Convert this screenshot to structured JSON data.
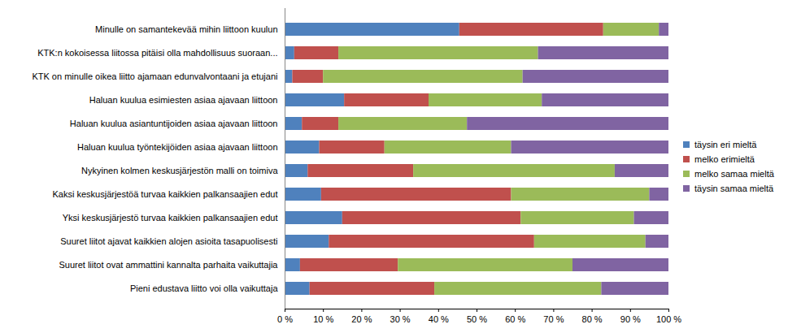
{
  "chart_data": {
    "type": "bar",
    "orientation": "horizontal",
    "stacked": true,
    "grid": false,
    "legend": "right",
    "data_labels": false,
    "categories": [
      "Minulle on samantekevää mihin liittoon kuulun",
      "KTK:n kokoisessa liitossa pitäisi olla mahdollisuus suoraan...",
      "KTK on minulle oikea liitto ajamaan edunvalvontaani ja etujani",
      "Haluan kuulua esimiesten asiaa ajavaan liittoon",
      "Haluan kuulua asiantuntijoiden asiaa ajavaan liittoon",
      "Haluan kuulua työntekijöiden asiaa ajavaan liittoon",
      "Nykyinen kolmen keskusjärjestön malli on toimiva",
      "Kaksi keskusjärjestöä turvaa kaikkien palkansaajien edut",
      "Yksi keskusjärjestö turvaa kaikkien palkansaajien edut",
      "Suuret liitot ajavat kaikkien alojen asioita tasapuolisesti",
      "Suuret liitot ovat ammattini kannalta parhaita vaikuttajia",
      "Pieni edustava liitto voi olla vaikuttaja"
    ],
    "series": [
      {
        "name": "täysin eri mieltä",
        "color": "#4F81BD",
        "values": [
          45.5,
          2.5,
          2,
          15.5,
          4.5,
          9,
          6,
          9.5,
          15,
          11.5,
          4,
          6.5
        ]
      },
      {
        "name": "melko erimieltä",
        "color": "#C0504D",
        "values": [
          37.5,
          11.5,
          8,
          22,
          9.5,
          17,
          27.5,
          49.5,
          46.5,
          53.5,
          25.5,
          32.5
        ]
      },
      {
        "name": "melko samaa mieltä",
        "color": "#9BBB59",
        "values": [
          14.5,
          52,
          52,
          29.5,
          33.5,
          33,
          52.5,
          36,
          29.5,
          29,
          45.5,
          43.5
        ]
      },
      {
        "name": "täysin samaa mieltä",
        "color": "#8064A2",
        "values": [
          2.5,
          34,
          38,
          33,
          52.5,
          41,
          14,
          5,
          9,
          6,
          25,
          17.5
        ]
      }
    ],
    "xlim": [
      0,
      100
    ],
    "xticks": [
      {
        "value": 0,
        "label": "0 %"
      },
      {
        "value": 10,
        "label": "10 %"
      },
      {
        "value": 20,
        "label": "20 %"
      },
      {
        "value": 30,
        "label": "30 %"
      },
      {
        "value": 40,
        "label": "40 %"
      },
      {
        "value": 50,
        "label": "50 %"
      },
      {
        "value": 60,
        "label": "60 %"
      },
      {
        "value": 70,
        "label": "70 %"
      },
      {
        "value": 80,
        "label": "80 %"
      },
      {
        "value": 90,
        "label": "90 %"
      },
      {
        "value": 100,
        "label": "100 %"
      }
    ]
  }
}
